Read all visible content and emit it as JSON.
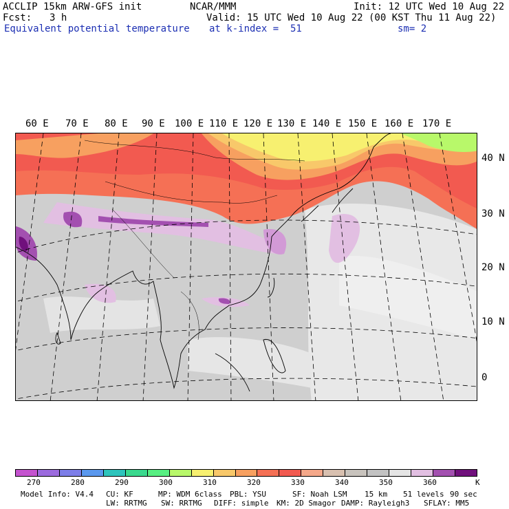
{
  "header": {
    "model_line": "ACCLIP 15km ARW-GFS init",
    "org": "NCAR/MMM",
    "init": "Init: 12 UTC Wed 10 Aug 22",
    "fcst_label": "Fcst:",
    "fcst_value": "3 h",
    "valid": "Valid: 15 UTC Wed 10 Aug 22 (00 KST Thu 11 Aug 22)",
    "field": "Equivalent potential temperature",
    "level": "at k-index =  51",
    "smoothing": "sm= 2"
  },
  "map": {
    "lon_labels": [
      "60 E",
      "70 E",
      "80 E",
      "90 E",
      "100 E",
      "110 E",
      "120 E",
      "130 E",
      "140 E",
      "150 E",
      "160 E",
      "170 E"
    ],
    "lat_labels": [
      "40 N",
      "30 N",
      "20 N",
      "10 N",
      "0"
    ]
  },
  "colorbar": {
    "unit": "K",
    "ticks": [
      "270",
      "280",
      "290",
      "300",
      "310",
      "320",
      "330",
      "340",
      "350",
      "360"
    ],
    "colors": [
      "#c453cf",
      "#9c6bde",
      "#7d7ee8",
      "#5a98ee",
      "#2ec4bc",
      "#3ad98e",
      "#57ef82",
      "#b8f86a",
      "#f7f070",
      "#f8c86a",
      "#f7a060",
      "#f57055",
      "#f25a50",
      "#f5a88a",
      "#d8c0b0",
      "#c8c3bd",
      "#c2c2c2",
      "#e5e5e5",
      "#e2bfe2",
      "#a350b0",
      "#70107c"
    ]
  },
  "footer": {
    "line1": [
      "Model Info: V4.4",
      "CU: KF",
      "MP: WDM 6class",
      "PBL: YSU",
      "SF: Noah LSM",
      "15 km",
      "51 levels",
      "90 sec"
    ],
    "line2": [
      "LW: RRTMG",
      "SW: RRTMG",
      "DIFF: simple",
      "KM: 2D Smagor",
      "DAMP: Rayleigh3",
      "SFLAY: MM5"
    ]
  }
}
